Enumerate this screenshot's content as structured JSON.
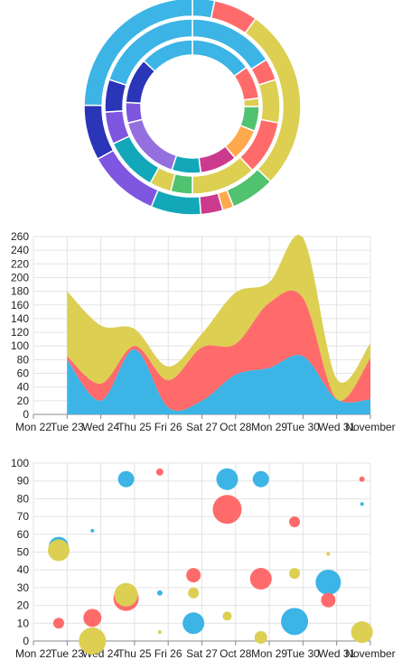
{
  "colors": {
    "blue": "#3cb4e5",
    "red": "#ff6b6b",
    "yellow": "#dccf52",
    "orange": "#ffa94d",
    "green": "#51c26f",
    "navy": "#2a35b8",
    "purple": "#7f56e0",
    "teal": "#12a7b9",
    "magenta": "#cc3a8e",
    "lavender": "#9470de"
  },
  "chart_data": [
    {
      "type": "sunburst",
      "rings": [
        [
          {
            "value": 15,
            "color": "blue"
          },
          {
            "value": 8,
            "color": "red"
          },
          {
            "value": 2,
            "color": "yellow"
          },
          {
            "value": 6,
            "color": "green"
          },
          {
            "value": 8,
            "color": "orange"
          },
          {
            "value": 9,
            "color": "magenta"
          },
          {
            "value": 7,
            "color": "teal"
          },
          {
            "value": 16,
            "color": "lavender"
          },
          {
            "value": 5,
            "color": "purple"
          },
          {
            "value": 11,
            "color": "navy"
          },
          {
            "value": 13,
            "color": "blue"
          }
        ],
        [
          {
            "value": 16,
            "color": "blue"
          },
          {
            "value": 4,
            "color": "red"
          },
          {
            "value": 8,
            "color": "yellow"
          },
          {
            "value": 10,
            "color": "red"
          },
          {
            "value": 12,
            "color": "yellow"
          },
          {
            "value": 4,
            "color": "green"
          },
          {
            "value": 4,
            "color": "yellow"
          },
          {
            "value": 10,
            "color": "teal"
          },
          {
            "value": 6,
            "color": "purple"
          },
          {
            "value": 6,
            "color": "navy"
          },
          {
            "value": 20,
            "color": "blue"
          }
        ],
        [
          {
            "value": 4,
            "color": "blue"
          },
          {
            "value": 8,
            "color": "red"
          },
          {
            "value": 33,
            "color": "yellow"
          },
          {
            "value": 8,
            "color": "green"
          },
          {
            "value": 2,
            "color": "orange"
          },
          {
            "value": 4,
            "color": "magenta"
          },
          {
            "value": 9,
            "color": "teal"
          },
          {
            "value": 13,
            "color": "purple"
          },
          {
            "value": 10,
            "color": "navy"
          },
          {
            "value": 30,
            "color": "blue"
          }
        ]
      ]
    },
    {
      "type": "area",
      "stacked": true,
      "x": [
        "Mon 22",
        "Tue 23",
        "Wed 24",
        "Thu 25",
        "Fri 26",
        "Sat 27",
        "Oct 28",
        "Mon 29",
        "Tue 30",
        "Wed 31",
        "November"
      ],
      "x_ticks": [
        "Mon 22",
        "Tue 23",
        "Wed 24",
        "Thu 25",
        "Fri 26",
        "Sat 27",
        "Oct 28",
        "Mon 29",
        "Tue 30",
        "Wed 31",
        "November"
      ],
      "yticks": [
        0,
        20,
        40,
        60,
        80,
        100,
        120,
        140,
        160,
        180,
        200,
        220,
        240,
        260
      ],
      "ylim": [
        0,
        260
      ],
      "grid": true,
      "series": [
        {
          "color": "blue",
          "values": [
            null,
            80,
            20,
            95,
            10,
            20,
            58,
            68,
            85,
            22,
            22
          ]
        },
        {
          "color": "red",
          "values": [
            null,
            5,
            25,
            5,
            40,
            78,
            45,
            95,
            85,
            0,
            60
          ]
        },
        {
          "color": "yellow",
          "values": [
            null,
            95,
            85,
            25,
            20,
            20,
            75,
            30,
            88,
            30,
            22
          ]
        }
      ]
    },
    {
      "type": "scatter",
      "subtype": "bubble",
      "x_ticks": [
        "Mon 22",
        "Tue 23",
        "Wed 24",
        "Thu 25",
        "Fri 26",
        "Sat 27",
        "Oct 28",
        "Mon 29",
        "Tue 30",
        "Wed 31",
        "November"
      ],
      "yticks": [
        0,
        10,
        20,
        30,
        40,
        50,
        60,
        70,
        80,
        90,
        100
      ],
      "ylim": [
        0,
        100
      ],
      "xlim": [
        0,
        10
      ],
      "grid": true,
      "series": [
        {
          "color": "blue",
          "points": [
            {
              "x": 0.75,
              "y": 53,
              "r": 11
            },
            {
              "x": 1.75,
              "y": 62,
              "r": 2
            },
            {
              "x": 2.75,
              "y": 91,
              "r": 9
            },
            {
              "x": 3.75,
              "y": 27,
              "r": 3
            },
            {
              "x": 4.75,
              "y": 10,
              "r": 12
            },
            {
              "x": 5.75,
              "y": 91,
              "r": 12
            },
            {
              "x": 6.75,
              "y": 91,
              "r": 9
            },
            {
              "x": 7.75,
              "y": 11,
              "r": 15
            },
            {
              "x": 8.75,
              "y": 33,
              "r": 14
            },
            {
              "x": 9.75,
              "y": 77,
              "r": 2
            }
          ]
        },
        {
          "color": "red",
          "points": [
            {
              "x": 0.75,
              "y": 10,
              "r": 6
            },
            {
              "x": 1.75,
              "y": 13,
              "r": 10
            },
            {
              "x": 2.75,
              "y": 24,
              "r": 14
            },
            {
              "x": 3.75,
              "y": 95,
              "r": 4
            },
            {
              "x": 4.75,
              "y": 37,
              "r": 8
            },
            {
              "x": 5.75,
              "y": 74,
              "r": 16
            },
            {
              "x": 6.75,
              "y": 35,
              "r": 12
            },
            {
              "x": 7.75,
              "y": 67,
              "r": 6
            },
            {
              "x": 8.75,
              "y": 23,
              "r": 8
            },
            {
              "x": 9.75,
              "y": 91,
              "r": 3
            }
          ]
        },
        {
          "color": "yellow",
          "points": [
            {
              "x": 0.75,
              "y": 51,
              "r": 12
            },
            {
              "x": 1.75,
              "y": 0,
              "r": 15
            },
            {
              "x": 2.75,
              "y": 26,
              "r": 13
            },
            {
              "x": 3.75,
              "y": 5,
              "r": 2
            },
            {
              "x": 4.75,
              "y": 27,
              "r": 6
            },
            {
              "x": 5.75,
              "y": 14,
              "r": 5
            },
            {
              "x": 6.75,
              "y": 2,
              "r": 7
            },
            {
              "x": 7.75,
              "y": 38,
              "r": 6
            },
            {
              "x": 8.75,
              "y": 49,
              "r": 2
            },
            {
              "x": 9.75,
              "y": 5,
              "r": 12
            }
          ]
        }
      ]
    }
  ]
}
